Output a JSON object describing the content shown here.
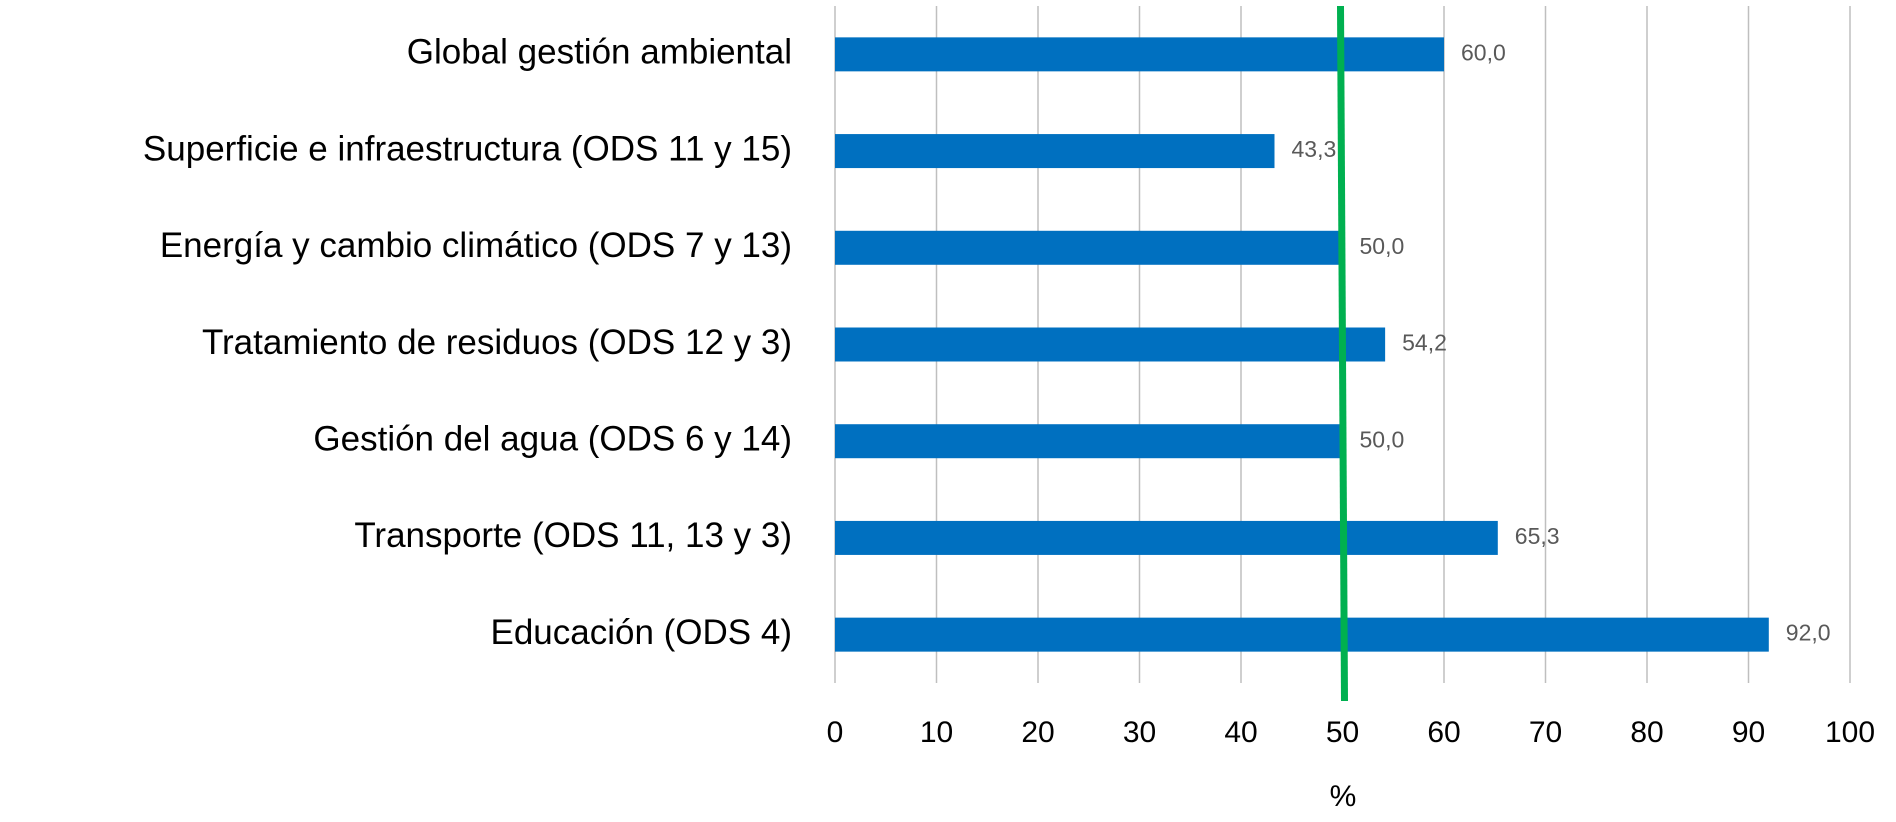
{
  "chart_data": {
    "type": "bar",
    "orientation": "horizontal",
    "categories": [
      "Global gestión ambiental",
      "Superficie e infraestructura (ODS 11 y 15)",
      "Energía y cambio climático (ODS 7 y 13)",
      "Tratamiento de residuos (ODS 12 y 3)",
      "Gestión del agua (ODS 6  y 14)",
      "Transporte (ODS 11, 13 y 3)",
      "Educación (ODS 4)"
    ],
    "values": [
      60.0,
      43.3,
      50.0,
      54.2,
      50.0,
      65.3,
      92.0
    ],
    "value_labels": [
      "60,0",
      "43,3",
      "50,0",
      "54,2",
      "50,0",
      "65,3",
      "92,0"
    ],
    "color": "#0070c0",
    "x_axis_label": "%",
    "xlim": [
      0,
      100
    ],
    "xticks": [
      0,
      10,
      20,
      30,
      40,
      50,
      60,
      70,
      80,
      90,
      100
    ],
    "grid": true,
    "reference_line": {
      "value": 50,
      "color": "#00b050"
    }
  }
}
